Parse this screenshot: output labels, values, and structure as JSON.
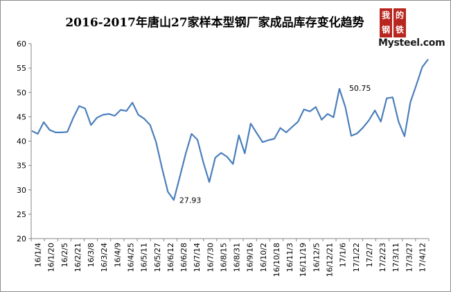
{
  "title": "2016-2017年唐山27家样本型钢厂家成品库存变化趋势",
  "logo": {
    "glyphs": [
      "我",
      "的",
      "钢",
      "铁"
    ],
    "text": "Mysteel.com"
  },
  "colors": {
    "line": "#4a7ebb",
    "axis": "#868686",
    "logo": "#b8261f"
  },
  "chart_data": {
    "type": "line",
    "title": "2016-2017年唐山27家样本型钢厂家成品库存变化趋势",
    "xlabel": "",
    "ylabel": "",
    "ylim": [
      20,
      60
    ],
    "yticks": [
      20,
      25,
      30,
      35,
      40,
      45,
      50,
      55,
      60
    ],
    "grid": false,
    "legend": "none",
    "x_tick_labels": [
      "16/1/4",
      "16/1/20",
      "16/2/5",
      "16/2/21",
      "16/3/8",
      "16/3/24",
      "16/4/9",
      "16/4/25",
      "16/5/11",
      "16/5/27",
      "16/6/12",
      "16/6/28",
      "16/7/14",
      "16/7/30",
      "16/8/15",
      "16/8/31",
      "16/9/16",
      "16/10/2",
      "16/10/18",
      "16/11/3",
      "16/11/19",
      "16/12/5",
      "16/12/21",
      "17/1/6",
      "17/1/22",
      "17/2/7",
      "17/2/23",
      "17/3/11",
      "17/3/27",
      "17/4/12"
    ],
    "series": [
      {
        "values": [
          42.1,
          41.5,
          43.9,
          42.3,
          41.8,
          41.8,
          41.9,
          44.8,
          47.2,
          46.7,
          43.3,
          44.8,
          45.4,
          45.6,
          45.2,
          46.4,
          46.2,
          47.9,
          45.4,
          44.6,
          43.3,
          39.8,
          34.5,
          29.6,
          27.93,
          32.6,
          37.4,
          41.5,
          40.3,
          35.6,
          31.6,
          36.6,
          37.6,
          36.8,
          35.3,
          41.2,
          37.5,
          43.6,
          41.7,
          39.8,
          40.2,
          40.5,
          42.7,
          41.8,
          42.9,
          44.0,
          46.5,
          46.1,
          47.0,
          44.4,
          45.6,
          44.9,
          50.75,
          47.0,
          41.1,
          41.6,
          42.8,
          44.3,
          46.3,
          44.0,
          48.8,
          49.0,
          44.0,
          41.0,
          48.0,
          51.5,
          55.2,
          56.8
        ]
      }
    ],
    "data_labels": [
      {
        "index": 24,
        "text": "27.93"
      },
      {
        "index": 52,
        "text": "50.75"
      }
    ]
  }
}
